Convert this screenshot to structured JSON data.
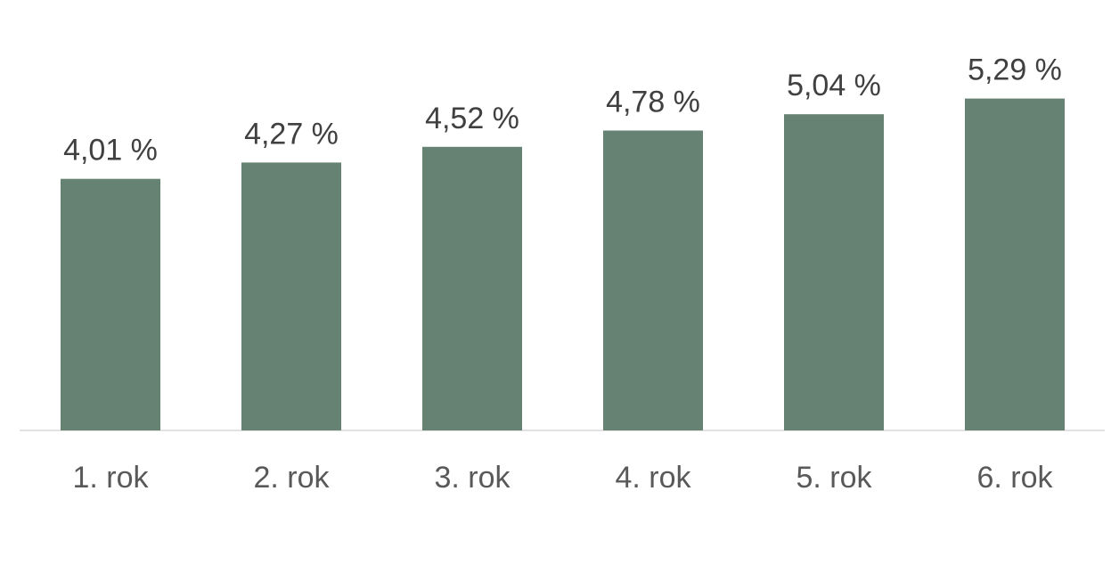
{
  "chart_data": {
    "type": "bar",
    "categories": [
      "1. rok",
      "2. rok",
      "3. rok",
      "4. rok",
      "5. rok",
      "6. rok"
    ],
    "values": [
      4.01,
      4.27,
      4.52,
      4.78,
      5.04,
      5.29
    ],
    "value_labels": [
      "4,01 %",
      "4,27 %",
      "4,52 %",
      "4,78 %",
      "5,04 %",
      "5,29 %"
    ],
    "color": "#668272"
  }
}
